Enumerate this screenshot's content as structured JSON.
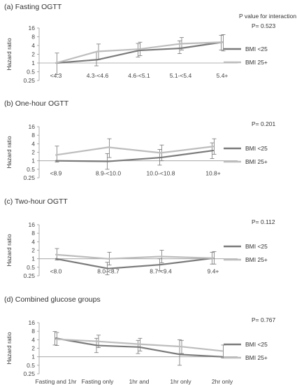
{
  "figure": {
    "pvalue_header": "P value for interaction",
    "ylabel": "Hazard ratio",
    "colors": {
      "bmi_lt25": "#7a7a7a",
      "bmi_25plus": "#bdbdbd",
      "axis": "#9a9a9a",
      "text": "#333333"
    }
  },
  "chart_data": [
    {
      "type": "line",
      "title": "(a) Fasting OGTT",
      "pvalue": "P=  0.523",
      "ylabel": "Hazard ratio",
      "y_scale": "log",
      "yticks": [
        "0.25",
        "0.5",
        "1",
        "2",
        "4",
        "8",
        "16"
      ],
      "categories": [
        "<4.3",
        "4.3-<4.6",
        "4.6-<5.1",
        "5.1-<5.4",
        "5.4+"
      ],
      "series": [
        {
          "name": "BMI <25",
          "values": [
            1,
            1.3,
            2.7,
            3.2,
            5.2
          ],
          "ci": [
            [
              1,
              1
            ],
            [
              0.8,
              2.4
            ],
            [
              1.6,
              4.7
            ],
            [
              2.1,
              5.8
            ],
            [
              2.8,
              9.0
            ]
          ]
        },
        {
          "name": "BMI 25+",
          "values": [
            1,
            2.5,
            3.0,
            4.6,
            5.2
          ],
          "ci": [
            [
              0.4,
              2.2
            ],
            [
              1.3,
              4.5
            ],
            [
              1.8,
              5.2
            ],
            [
              2.8,
              7.5
            ],
            [
              2.6,
              9.5
            ]
          ]
        }
      ]
    },
    {
      "type": "line",
      "title": "(b) One-hour OGTT",
      "pvalue": "P=  0.201",
      "ylabel": "Hazard ratio",
      "y_scale": "log",
      "yticks": [
        "0.25",
        "0.5",
        "1",
        "2",
        "4",
        "8",
        "16"
      ],
      "categories": [
        "<8.9",
        "8.9-<10.0",
        "10.0-<10.8",
        "10.8+"
      ],
      "series": [
        {
          "name": "BMI <25",
          "values": [
            1,
            0.95,
            1.3,
            2.3
          ],
          "ci": [
            [
              1,
              1
            ],
            [
              0.5,
              1.8
            ],
            [
              0.7,
              2.5
            ],
            [
              1.2,
              4.3
            ]
          ]
        },
        {
          "name": "BMI 25+",
          "values": [
            1.6,
            3.0,
            1.9,
            3.2
          ],
          "ci": [
            [
              0.9,
              3.3
            ],
            [
              1.3,
              6.0
            ],
            [
              1.0,
              3.6
            ],
            [
              1.7,
              6.0
            ]
          ]
        }
      ]
    },
    {
      "type": "line",
      "title": "(c) Two-hour OGTT",
      "pvalue": "P=  0.112",
      "ylabel": "Hazard ratio",
      "y_scale": "log",
      "yticks": [
        "0.25",
        "0.5",
        "1",
        "2",
        "4",
        "8",
        "16"
      ],
      "categories": [
        "<8.0",
        "8.0-<8.7",
        "8.7-<9.4",
        "9.4+"
      ],
      "series": [
        {
          "name": "BMI <25",
          "values": [
            1,
            0.45,
            0.62,
            1.05
          ],
          "ci": [
            [
              1,
              1
            ],
            [
              0.27,
              0.75
            ],
            [
              0.38,
              1.0
            ],
            [
              0.65,
              1.7
            ]
          ]
        },
        {
          "name": "BMI 25+",
          "values": [
            1.4,
            1.0,
            1.2,
            1.05
          ],
          "ci": [
            [
              0.9,
              2.3
            ],
            [
              0.6,
              1.7
            ],
            [
              0.72,
              2.0
            ],
            [
              0.65,
              1.8
            ]
          ]
        }
      ]
    },
    {
      "type": "line",
      "title": "(d) Combined glucose groups",
      "pvalue": "P=  0.767",
      "ylabel": "Hazard ratio",
      "y_scale": "log",
      "yticks": [
        "0.25",
        "0.5",
        "1",
        "2",
        "4",
        "8",
        "16"
      ],
      "categories": [
        "Fasting and 1hr or 2hr",
        "Fasting only",
        "1hr and 2hr only",
        "1hr only",
        "2hr only"
      ],
      "series": [
        {
          "name": "BMI <25",
          "values": [
            4.5,
            2.5,
            2.2,
            1.2,
            1.0
          ],
          "ci": [
            [
              2.6,
              7.8
            ],
            [
              1.4,
              4.5
            ],
            [
              1.3,
              3.8
            ],
            [
              0.5,
              4.0
            ],
            [
              1,
              1
            ]
          ]
        },
        {
          "name": "BMI 25+",
          "values": [
            4.2,
            3.5,
            2.8,
            2.3,
            1.6
          ],
          "ci": [
            [
              2.5,
              7.2
            ],
            [
              2.1,
              5.8
            ],
            [
              1.6,
              4.5
            ],
            [
              1.3,
              3.8
            ],
            [
              0.9,
              2.6
            ]
          ]
        }
      ]
    }
  ]
}
